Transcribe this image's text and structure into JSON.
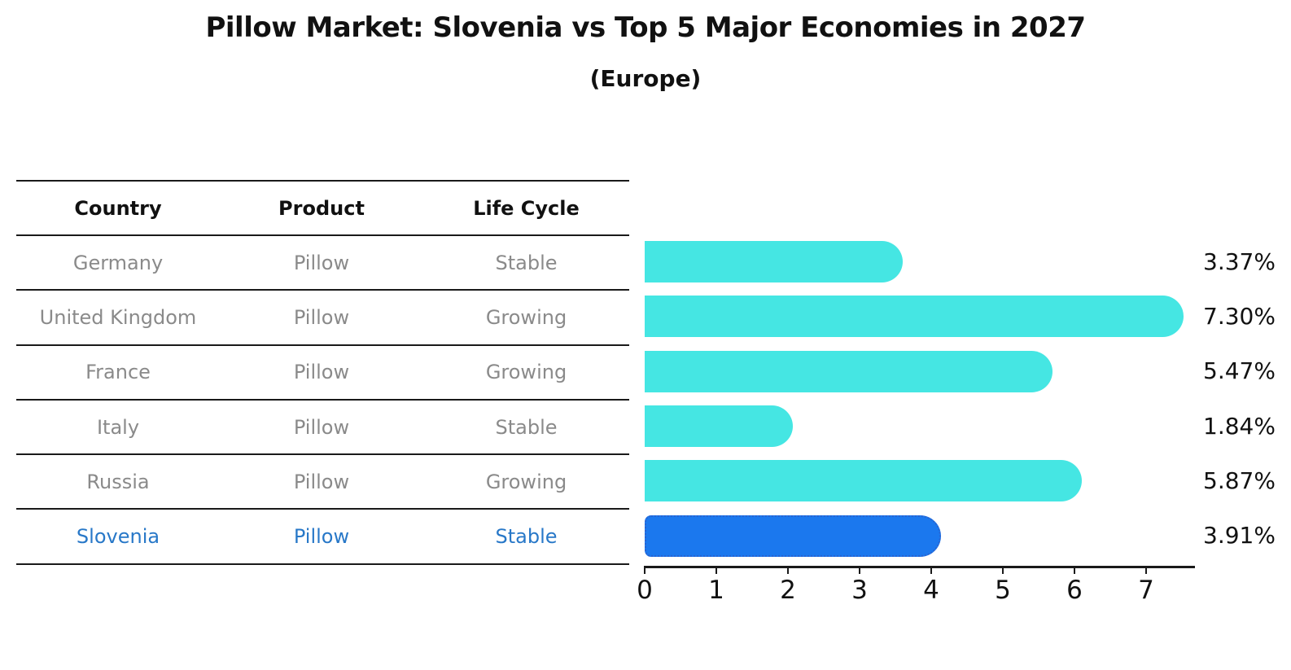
{
  "title": "Pillow Market: Slovenia vs Top 5 Major Economies in 2027",
  "subtitle": "(Europe)",
  "table": {
    "headers": [
      "Country",
      "Product",
      "Life Cycle"
    ],
    "rows": [
      {
        "country": "Germany",
        "product": "Pillow",
        "life_cycle": "Stable",
        "highlighted": false
      },
      {
        "country": "United Kingdom",
        "product": "Pillow",
        "life_cycle": "Growing",
        "highlighted": false
      },
      {
        "country": "France",
        "product": "Pillow",
        "life_cycle": "Growing",
        "highlighted": false
      },
      {
        "country": "Italy",
        "product": "Pillow",
        "life_cycle": "Stable",
        "highlighted": false
      },
      {
        "country": "Russia",
        "product": "Pillow",
        "life_cycle": "Growing",
        "highlighted": false
      },
      {
        "country": "Slovenia",
        "product": "Pillow",
        "life_cycle": "Stable",
        "highlighted": true
      }
    ]
  },
  "chart_data": {
    "type": "bar",
    "orientation": "horizontal",
    "title": "Pillow Market: Slovenia vs Top 5 Major Economies in 2027",
    "subtitle": "(Europe)",
    "categories": [
      "Germany",
      "United Kingdom",
      "France",
      "Italy",
      "Russia",
      "Slovenia"
    ],
    "values": [
      3.37,
      7.3,
      5.47,
      1.84,
      5.87,
      3.91
    ],
    "value_labels": [
      "3.37%",
      "7.30%",
      "5.47%",
      "1.84%",
      "5.87%",
      "3.91%"
    ],
    "x_ticks": [
      0,
      1,
      2,
      3,
      4,
      5,
      6,
      7
    ],
    "xlim": [
      0,
      7.7
    ],
    "grid": false,
    "legend": "none",
    "bar_color": "#45E6E3",
    "highlight_index": 5,
    "highlight_color": "#1B78EE",
    "highlight_border_color": "#2A63CF",
    "highlight_border_style": "dotted",
    "row_text_color": "#8a8a8a",
    "highlight_text_color": "#2878C8"
  }
}
